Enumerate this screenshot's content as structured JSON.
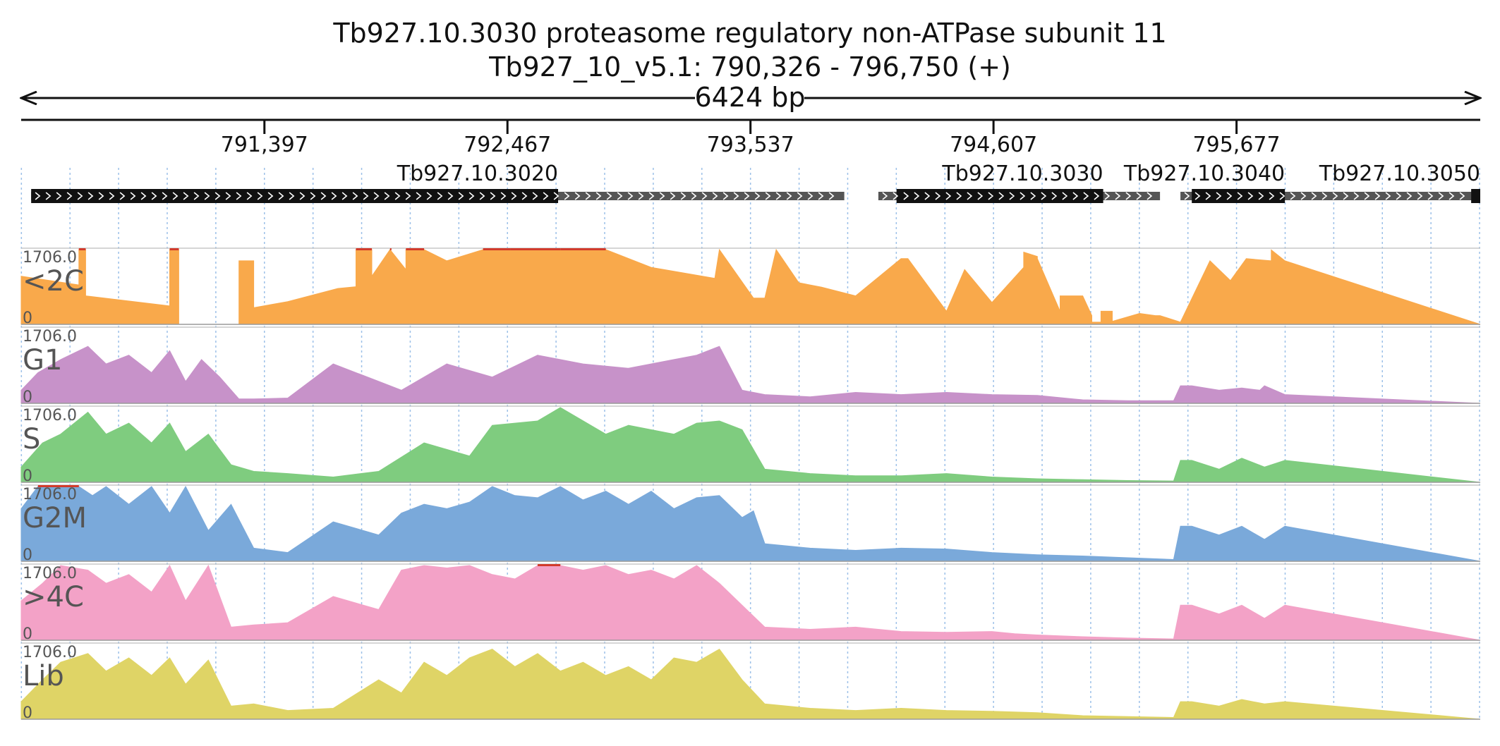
{
  "header": {
    "title": "Tb927.10.3030  proteasome regulatory non-ATPase subunit 11",
    "location": "Tb927_10_v5.1: 790,326 - 796,750 (+)",
    "span_label": "6424 bp"
  },
  "chart_data": {
    "type": "area",
    "region": {
      "start": 790326,
      "end": 796750
    },
    "ticks": [
      {
        "pos": 791397,
        "label": "791,397"
      },
      {
        "pos": 792467,
        "label": "792,467"
      },
      {
        "pos": 793537,
        "label": "793,537"
      },
      {
        "pos": 794607,
        "label": "794,607"
      },
      {
        "pos": 795677,
        "label": "795,677"
      }
    ],
    "genes": [
      {
        "name": "Tb927.10.3020",
        "start": 790370,
        "end": 793950,
        "cds_start": 790370,
        "cds_end": 792690
      },
      {
        "name": "Tb927.10.3030",
        "start": 794100,
        "end": 795340,
        "cds_start": 794180,
        "cds_end": 795090
      },
      {
        "name": "Tb927.10.3040",
        "start": 795430,
        "end": 796710,
        "cds_start": 795480,
        "cds_end": 795890
      },
      {
        "name": "Tb927.10.3050",
        "start": 796710,
        "end": 796750,
        "cds_start": 796710,
        "cds_end": 796750
      }
    ],
    "y_max_label": "1706.0",
    "y_min_label": "0",
    "ylim": [
      0,
      1706
    ],
    "clip_color": "#d23b2b",
    "gridlines": "dotted vertical",
    "tracks": [
      {
        "name": "<2C",
        "color": "#f9a94b",
        "x": [
          790326,
          790580,
          790580,
          790610,
          790610,
          790980,
          790980,
          791020,
          791020,
          791285,
          791285,
          791350,
          791350,
          791500,
          791720,
          791800,
          791800,
          791870,
          791870,
          791950,
          791950,
          792020,
          792020,
          792100,
          792200,
          792360,
          792360,
          792480,
          792480,
          792700,
          792900,
          793100,
          793380,
          793400,
          793550,
          793600,
          793650,
          793750,
          793850,
          794000,
          794200,
          794230,
          794400,
          794480,
          794600,
          794740,
          794740,
          794800,
          794800,
          794900,
          794900,
          795000,
          795040,
          795040,
          795080,
          795080,
          795130,
          795130,
          795250,
          795320,
          795340,
          795430,
          795430,
          795560,
          795650,
          795720,
          795830,
          795830,
          795890,
          796750
        ],
        "y": [
          1100,
          900,
          1706,
          1706,
          650,
          420,
          1706,
          1706,
          0,
          0,
          1450,
          1450,
          380,
          520,
          820,
          860,
          1706,
          1706,
          1100,
          1706,
          1706,
          1250,
          1706,
          1706,
          1450,
          1706,
          1706,
          1706,
          1706,
          1706,
          1706,
          1300,
          1050,
          1706,
          600,
          600,
          1706,
          950,
          850,
          650,
          1500,
          1500,
          300,
          1250,
          500,
          1300,
          1650,
          1550,
          1500,
          300,
          650,
          650,
          200,
          50,
          50,
          300,
          300,
          70,
          250,
          200,
          200,
          50,
          50,
          1450,
          1000,
          1500,
          1450,
          1700,
          1450,
          0
        ]
      },
      {
        "name": "G1",
        "color": "#c792c9",
        "x": [
          790326,
          790400,
          790500,
          790620,
          790700,
          790800,
          790900,
          790980,
          791050,
          791120,
          791200,
          791285,
          791350,
          791500,
          791700,
          791900,
          792000,
          792200,
          792400,
          792600,
          792800,
          793000,
          793200,
          793300,
          793400,
          793500,
          793600,
          793800,
          794000,
          794200,
          794400,
          794600,
          794800,
          795000,
          795200,
          795400,
          795430,
          795480,
          795600,
          795700,
          795780,
          795800,
          795890,
          796750
        ],
        "y": [
          300,
          700,
          1000,
          1300,
          900,
          1100,
          700,
          1200,
          500,
          1000,
          600,
          100,
          100,
          120,
          900,
          500,
          300,
          900,
          600,
          1100,
          900,
          800,
          1000,
          1100,
          1300,
          300,
          200,
          150,
          250,
          200,
          250,
          200,
          180,
          80,
          60,
          60,
          400,
          400,
          300,
          350,
          300,
          400,
          200,
          0
        ]
      },
      {
        "name": "S",
        "color": "#7fcc7f",
        "x": [
          790326,
          790420,
          790500,
          790620,
          790700,
          790800,
          790900,
          790980,
          791050,
          791150,
          791250,
          791350,
          791500,
          791700,
          791900,
          792100,
          792300,
          792400,
          792500,
          792600,
          792700,
          792900,
          793000,
          793200,
          793300,
          793400,
          793500,
          793600,
          793800,
          794000,
          794200,
          794400,
          794600,
          794800,
          795000,
          795200,
          795400,
          795430,
          795480,
          795600,
          795700,
          795800,
          795890,
          796750
        ],
        "y": [
          350,
          900,
          1100,
          1600,
          1100,
          1350,
          900,
          1350,
          700,
          1100,
          400,
          250,
          200,
          120,
          250,
          900,
          600,
          1300,
          1350,
          1400,
          1706,
          1100,
          1300,
          1100,
          1350,
          1400,
          1200,
          300,
          200,
          150,
          150,
          200,
          120,
          80,
          60,
          40,
          30,
          500,
          500,
          300,
          550,
          350,
          500,
          0
        ]
      },
      {
        "name": "G2M",
        "color": "#7aa9da",
        "x": [
          790326,
          790400,
          790500,
          790580,
          790640,
          790700,
          790800,
          790900,
          790980,
          791050,
          791150,
          791250,
          791350,
          791500,
          791700,
          791900,
          792000,
          792100,
          792200,
          792300,
          792400,
          792500,
          792600,
          792700,
          792800,
          792900,
          793000,
          793100,
          793200,
          793300,
          793400,
          793500,
          793550,
          793600,
          793800,
          794000,
          794200,
          794400,
          794600,
          794800,
          795000,
          795200,
          795400,
          795430,
          795480,
          795600,
          795700,
          795800,
          795890,
          796750
        ],
        "y": [
          1200,
          1706,
          1706,
          1706,
          1500,
          1706,
          1300,
          1706,
          1100,
          1706,
          700,
          1300,
          300,
          200,
          900,
          600,
          1100,
          1300,
          1200,
          1350,
          1706,
          1500,
          1450,
          1706,
          1400,
          1600,
          1300,
          1600,
          1200,
          1450,
          1500,
          1000,
          1150,
          400,
          300,
          250,
          300,
          280,
          200,
          150,
          120,
          80,
          40,
          800,
          800,
          600,
          800,
          500,
          800,
          0
        ]
      },
      {
        "name": ">4C",
        "color": "#f3a2c7",
        "x": [
          790326,
          790420,
          790500,
          790620,
          790700,
          790800,
          790900,
          790980,
          791050,
          791150,
          791250,
          791350,
          791500,
          791700,
          791900,
          792000,
          792100,
          792200,
          792300,
          792400,
          792500,
          792600,
          792700,
          792800,
          792900,
          793000,
          793100,
          793200,
          793300,
          793400,
          793500,
          793600,
          793800,
          794000,
          794200,
          794400,
          794600,
          794700,
          794800,
          795000,
          795200,
          795400,
          795430,
          795480,
          795600,
          795700,
          795800,
          795890,
          796750
        ],
        "y": [
          900,
          1300,
          1706,
          1600,
          1300,
          1500,
          1100,
          1706,
          900,
          1706,
          300,
          350,
          400,
          1000,
          700,
          1600,
          1706,
          1650,
          1706,
          1500,
          1400,
          1706,
          1706,
          1600,
          1706,
          1500,
          1600,
          1400,
          1706,
          1300,
          800,
          300,
          250,
          300,
          200,
          180,
          200,
          150,
          120,
          80,
          50,
          30,
          800,
          800,
          600,
          800,
          500,
          800,
          0
        ]
      },
      {
        "name": "Lib",
        "color": "#dfd466",
        "x": [
          790326,
          790420,
          790500,
          790620,
          790700,
          790800,
          790900,
          790980,
          791050,
          791150,
          791250,
          791350,
          791500,
          791700,
          791900,
          792000,
          792100,
          792200,
          792300,
          792400,
          792500,
          792600,
          792700,
          792800,
          792900,
          793000,
          793100,
          793200,
          793300,
          793400,
          793500,
          793600,
          793800,
          794000,
          794200,
          794400,
          794600,
          794800,
          795000,
          795200,
          795400,
          795430,
          795480,
          795600,
          795700,
          795800,
          795890,
          796750
        ],
        "y": [
          400,
          900,
          1300,
          1500,
          1100,
          1400,
          1000,
          1400,
          800,
          1350,
          300,
          350,
          200,
          250,
          900,
          600,
          1300,
          1000,
          1400,
          1600,
          1200,
          1500,
          1100,
          1300,
          1000,
          1200,
          900,
          1400,
          1300,
          1600,
          900,
          350,
          250,
          200,
          250,
          200,
          180,
          150,
          80,
          60,
          40,
          400,
          400,
          300,
          450,
          350,
          400,
          0
        ]
      }
    ]
  }
}
